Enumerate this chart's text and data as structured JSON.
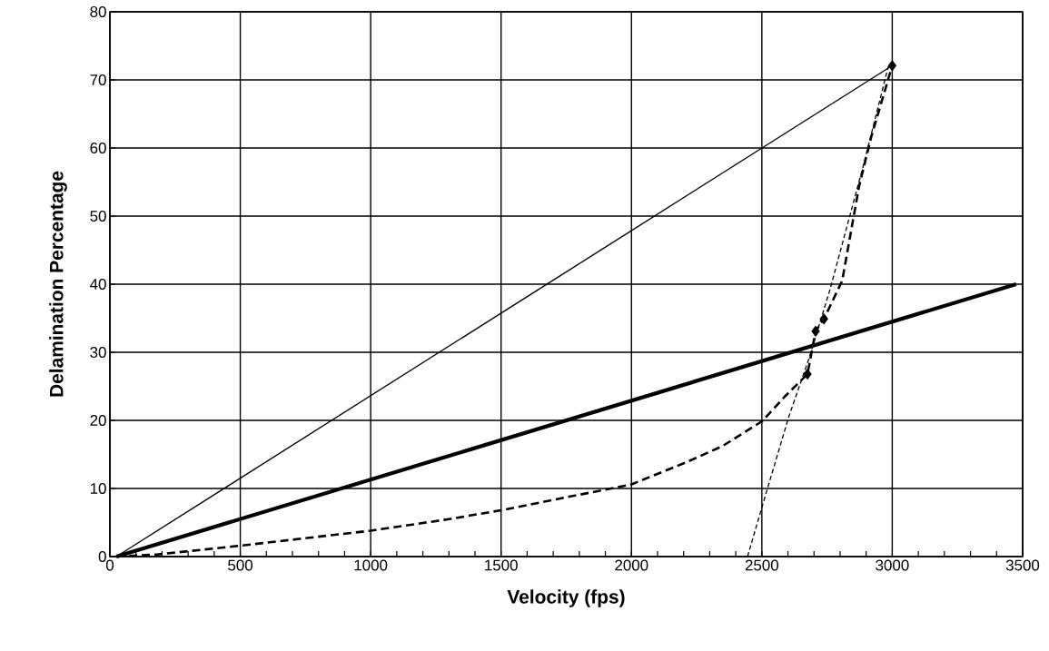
{
  "chart_data": {
    "type": "line",
    "xlabel": "Velocity (fps)",
    "ylabel": "Delamination Percentage",
    "xlim": [
      0,
      3500
    ],
    "ylim": [
      0,
      80
    ],
    "xticks": [
      0,
      {
        "value": 100,
        "label": null
      },
      {
        "value": 200,
        "label": null
      },
      {
        "value": 300,
        "label": null
      },
      {
        "value": 400,
        "label": null
      },
      500,
      {
        "value": 600,
        "label": null
      },
      {
        "value": 700,
        "label": null
      },
      {
        "value": 800,
        "label": null
      },
      {
        "value": 900,
        "label": null
      },
      1000,
      {
        "value": 1100,
        "label": null
      },
      {
        "value": 1200,
        "label": null
      },
      {
        "value": 1300,
        "label": null
      },
      {
        "value": 1400,
        "label": null
      },
      1500,
      {
        "value": 1600,
        "label": null
      },
      {
        "value": 1700,
        "label": null
      },
      {
        "value": 1800,
        "label": null
      },
      {
        "value": 1900,
        "label": null
      },
      2000,
      {
        "value": 2100,
        "label": null
      },
      {
        "value": 2200,
        "label": null
      },
      {
        "value": 2300,
        "label": null
      },
      {
        "value": 2400,
        "label": null
      },
      2500,
      {
        "value": 2600,
        "label": null
      },
      {
        "value": 2700,
        "label": null
      },
      {
        "value": 2800,
        "label": null
      },
      {
        "value": 2900,
        "label": null
      },
      3000,
      {
        "value": 3100,
        "label": null
      },
      {
        "value": 3200,
        "label": null
      },
      {
        "value": 3300,
        "label": null
      },
      {
        "value": 3400,
        "label": null
      },
      3500
    ],
    "yticks": [
      0,
      10,
      20,
      30,
      40,
      50,
      60,
      70,
      80
    ],
    "grid": true,
    "marker": "none",
    "series": [
      {
        "color": "#000000",
        "line_style": "solid",
        "x": [
          25,
          3000
        ],
        "values": [
          0,
          72.1
        ]
      },
      {
        "color": "#000000",
        "line_style": "solid",
        "x": [
          25,
          3475
        ],
        "values": [
          0,
          40
        ]
      },
      {
        "color": "#000000",
        "line_style": "dashed",
        "x": [
          25,
          180,
          500,
          1000,
          1300,
          1500,
          2000,
          2207,
          2348,
          2502,
          2588,
          2675,
          2706,
          2738,
          2808,
          2873,
          2920,
          3000
        ],
        "values": [
          0,
          0.3,
          1.6,
          3.8,
          5.5,
          6.8,
          10.6,
          13.8,
          16.2,
          19.9,
          23.5,
          26.8,
          33.1,
          34.9,
          40.5,
          54.4,
          61.7,
          72.1
        ]
      },
      {
        "color": "#000000",
        "line_style": "dotted",
        "x": [
          2445,
          2500,
          2603,
          2680,
          2762,
          2889,
          2985
        ],
        "values": [
          0,
          7.2,
          20.5,
          29,
          39.3,
          57.4,
          72
        ]
      },
      {
        "type": "scatter",
        "color": "#000000",
        "marker": "diamond",
        "x": [
          2675,
          2706,
          2738,
          3000
        ],
        "values": [
          26.8,
          33.1,
          34.9,
          72.1
        ]
      }
    ]
  }
}
